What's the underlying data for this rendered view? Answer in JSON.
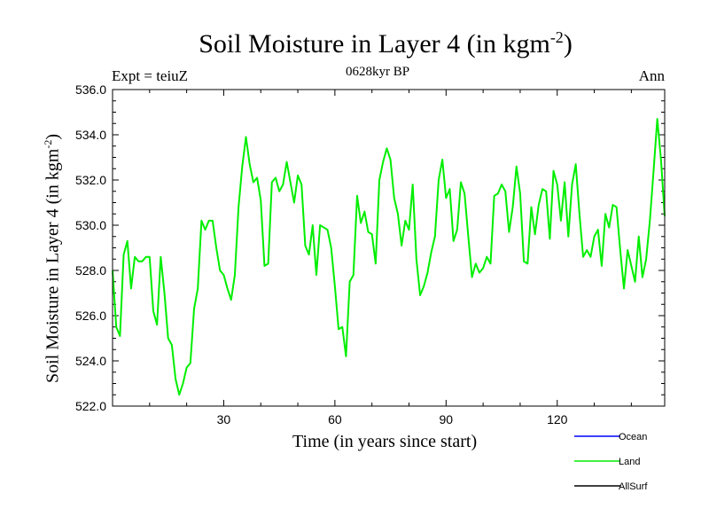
{
  "chart_data": {
    "type": "line",
    "title_main": "Soil Moisture in Layer 4 (in kgm",
    "title_exp": "-2",
    "title_close": ")",
    "expt_label": "Expt = teiuZ",
    "subtitle": "0628kyr BP",
    "season": "Ann",
    "xlabel": "Time (in years since start)",
    "ylabel_main": "Soil Moisture in Layer 4 (in kgm",
    "ylabel_exp": "-2",
    "ylabel_close": ")",
    "xlim": [
      0,
      149
    ],
    "ylim": [
      522,
      536
    ],
    "xticks": [
      30,
      60,
      90,
      120
    ],
    "xtick_labels": [
      "30",
      "60",
      "90",
      "120"
    ],
    "yticks": [
      522,
      524,
      526,
      528,
      530,
      532,
      534,
      536
    ],
    "ytick_labels": [
      "522.0",
      "524.0",
      "526.0",
      "528.0",
      "530.0",
      "532.0",
      "534.0",
      "536.0"
    ],
    "legend": [
      {
        "name": "Ocean",
        "color": "#0000ff"
      },
      {
        "name": "Land",
        "color": "#00ee00"
      },
      {
        "name": "AllSurf",
        "color": "#000000"
      }
    ],
    "series": [
      {
        "name": "Land",
        "color": "#00ee00",
        "x": [
          0,
          1,
          2,
          3,
          4,
          5,
          6,
          7,
          8,
          9,
          10,
          11,
          12,
          13,
          14,
          15,
          16,
          17,
          18,
          19,
          20,
          21,
          22,
          23,
          24,
          25,
          26,
          27,
          28,
          29,
          30,
          31,
          32,
          33,
          34,
          35,
          36,
          37,
          38,
          39,
          40,
          41,
          42,
          43,
          44,
          45,
          46,
          47,
          48,
          49,
          50,
          51,
          52,
          53,
          54,
          55,
          56,
          57,
          58,
          59,
          60,
          61,
          62,
          63,
          64,
          65,
          66,
          67,
          68,
          69,
          70,
          71,
          72,
          73,
          74,
          75,
          76,
          77,
          78,
          79,
          80,
          81,
          82,
          83,
          84,
          85,
          86,
          87,
          88,
          89,
          90,
          91,
          92,
          93,
          94,
          95,
          96,
          97,
          98,
          99,
          100,
          101,
          102,
          103,
          104,
          105,
          106,
          107,
          108,
          109,
          110,
          111,
          112,
          113,
          114,
          115,
          116,
          117,
          118,
          119,
          120,
          121,
          122,
          123,
          124,
          125,
          126,
          127,
          128,
          129,
          130,
          131,
          132,
          133,
          134,
          135,
          136,
          137,
          138,
          139,
          140,
          141,
          142,
          143,
          144,
          145,
          146,
          147,
          148,
          149
        ],
        "values": [
          528.0,
          525.5,
          525.1,
          528.7,
          529.3,
          527.2,
          528.6,
          528.4,
          528.4,
          528.6,
          528.6,
          526.2,
          525.6,
          528.6,
          527.0,
          525.0,
          524.7,
          523.2,
          522.5,
          523.0,
          523.7,
          523.9,
          526.3,
          527.2,
          530.2,
          529.8,
          530.2,
          530.2,
          529.0,
          528.0,
          527.8,
          527.2,
          526.7,
          527.8,
          530.8,
          532.6,
          533.9,
          532.7,
          531.9,
          532.1,
          531.1,
          528.2,
          528.3,
          531.9,
          532.1,
          531.5,
          531.8,
          532.8,
          531.9,
          531.0,
          532.2,
          531.8,
          529.1,
          528.7,
          530.0,
          527.8,
          530.0,
          529.9,
          529.8,
          529.0,
          527.3,
          525.4,
          525.5,
          524.2,
          527.5,
          527.8,
          531.3,
          530.1,
          530.6,
          529.7,
          529.6,
          528.3,
          532.0,
          532.8,
          533.4,
          532.9,
          531.2,
          530.5,
          529.1,
          530.2,
          529.8,
          531.8,
          528.5,
          526.9,
          527.3,
          527.9,
          528.8,
          529.5,
          532.0,
          532.9,
          531.2,
          531.6,
          529.3,
          529.8,
          531.9,
          531.4,
          529.5,
          527.7,
          528.3,
          527.9,
          528.1,
          528.6,
          528.3,
          531.3,
          531.4,
          531.8,
          531.5,
          529.7,
          530.8,
          532.6,
          531.4,
          528.4,
          528.3,
          530.8,
          529.6,
          530.9,
          531.6,
          531.5,
          529.4,
          532.4,
          531.8,
          530.2,
          531.9,
          529.5,
          531.8,
          532.7,
          530.5,
          528.6,
          528.9,
          528.6,
          529.5,
          529.8,
          528.2,
          530.5,
          529.9,
          530.9,
          530.8,
          528.9,
          527.2,
          528.9,
          528.2,
          527.5,
          529.5,
          527.7,
          528.5,
          530.2,
          532.4,
          534.7,
          532.9,
          530.4
        ]
      }
    ]
  }
}
